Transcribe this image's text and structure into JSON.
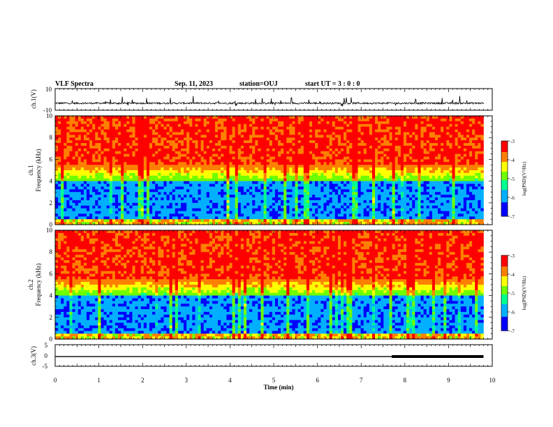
{
  "header": {
    "title": "VLF Spectra",
    "date": "Sep. 11, 2023",
    "station": "station=OUJ",
    "start": "start  UT =  3 : 0 : 0"
  },
  "chart_data": [
    {
      "type": "line",
      "ylabel": "ch.1(V)",
      "ylim": [
        -10,
        10
      ],
      "y_ticks": [
        "10",
        "-10"
      ],
      "baseline": -3.5,
      "xlim": [
        0,
        10
      ]
    },
    {
      "type": "heatmap",
      "ylabel": "ch.1\nFrequency  (kHz)",
      "ylabel_1": "ch.1",
      "ylabel_2": "Frequency  (kHz)",
      "ylim": [
        0,
        10
      ],
      "y_ticks": [
        "10",
        "8",
        "6",
        "4",
        "2",
        "0"
      ],
      "xlim": [
        0,
        10
      ],
      "data_extent_min": 9.8,
      "colorbar": {
        "label": "log(PSD)(V²/Hz)",
        "range": [
          -7,
          -3
        ],
        "ticks": [
          "-3",
          "-4",
          "-5",
          "-6",
          "-7"
        ]
      }
    },
    {
      "type": "heatmap",
      "ylabel": "ch.2\nFrequency  (kHz)",
      "ylabel_1": "ch.2",
      "ylabel_2": "Frequency  (kHz)",
      "ylim": [
        0,
        10
      ],
      "y_ticks": [
        "10",
        "8",
        "6",
        "4",
        "2",
        "0"
      ],
      "xlim": [
        0,
        10
      ],
      "data_extent_min": 9.8,
      "colorbar": {
        "label": "log(PSD)(V²/Hz)",
        "range": [
          -7,
          -3
        ],
        "ticks": [
          "-3",
          "-4",
          "-5",
          "-6",
          "-7"
        ]
      }
    },
    {
      "type": "line",
      "ylabel": "ch.3(V)",
      "ylim": [
        -5,
        5
      ],
      "y_ticks": [
        "5",
        "0",
        "-5"
      ],
      "segments": [
        {
          "x": [
            0,
            7.7
          ],
          "y": -0.5
        },
        {
          "x": [
            7.7,
            9.8
          ],
          "y": -0.5,
          "thick": true
        }
      ],
      "xlabel": "Time  (min)",
      "x_ticks": [
        "0",
        "1",
        "2",
        "3",
        "4",
        "5",
        "6",
        "7",
        "8",
        "9",
        "10"
      ]
    }
  ]
}
